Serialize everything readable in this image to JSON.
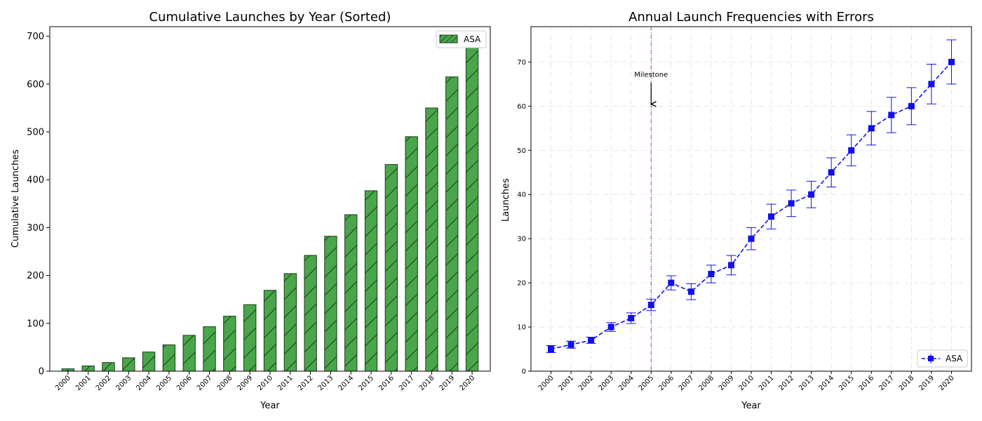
{
  "chart_data": [
    {
      "type": "bar",
      "title": "Cumulative Launches by Year (Sorted)",
      "xlabel": "Year",
      "ylabel": "Cumulative Launches",
      "categories": [
        "2000",
        "2001",
        "2002",
        "2003",
        "2004",
        "2005",
        "2006",
        "2007",
        "2008",
        "2009",
        "2010",
        "2011",
        "2012",
        "2013",
        "2014",
        "2015",
        "2016",
        "2017",
        "2018",
        "2019",
        "2020"
      ],
      "series": [
        {
          "name": "ASA",
          "values": [
            5,
            11,
            18,
            28,
            40,
            55,
            75,
            93,
            115,
            139,
            169,
            204,
            242,
            282,
            327,
            377,
            432,
            490,
            550,
            615,
            685
          ]
        }
      ],
      "ylim": [
        0,
        720
      ],
      "yticks": [
        0,
        100,
        200,
        300,
        400,
        500,
        600,
        700
      ],
      "bar_color": "#4aa64a",
      "hatch": "/",
      "legend": "top-right",
      "grid": false
    },
    {
      "type": "line",
      "title": "Annual Launch Frequencies with Errors",
      "xlabel": "Year",
      "ylabel": "Launches",
      "x": [
        "2000",
        "2001",
        "2002",
        "2003",
        "2004",
        "2005",
        "2006",
        "2007",
        "2008",
        "2009",
        "2010",
        "2011",
        "2012",
        "2013",
        "2014",
        "2015",
        "2016",
        "2017",
        "2018",
        "2019",
        "2020"
      ],
      "series": [
        {
          "name": "ASA",
          "values": [
            5,
            6,
            7,
            10,
            12,
            15,
            20,
            18,
            22,
            24,
            30,
            35,
            38,
            40,
            45,
            50,
            55,
            58,
            60,
            65,
            70
          ],
          "errors": [
            0.8,
            0.8,
            0.7,
            1.0,
            1.2,
            1.3,
            1.6,
            1.8,
            2.0,
            2.2,
            2.5,
            2.8,
            3.0,
            3.0,
            3.3,
            3.5,
            3.8,
            4.0,
            4.2,
            4.5,
            5.0
          ],
          "color": "#1010ee",
          "line_style": "dashed",
          "marker": "square"
        }
      ],
      "ylim": [
        0,
        78
      ],
      "yticks": [
        0,
        10,
        20,
        30,
        40,
        50,
        60,
        70
      ],
      "grid": true,
      "legend": "bottom-right",
      "vline": {
        "x": "2005",
        "color": "#b040c0"
      },
      "annotation": {
        "text": "Milestone",
        "x": "2005",
        "y": 60
      }
    }
  ]
}
